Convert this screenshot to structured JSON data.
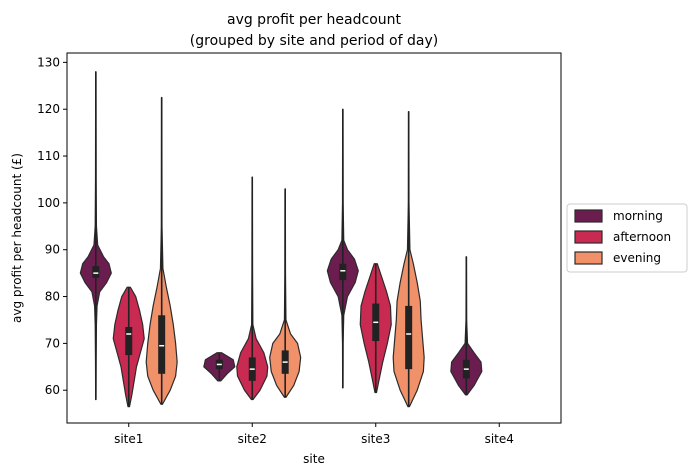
{
  "chart_data": {
    "type": "violin",
    "title_line1": "avg profit per headcount",
    "title_line2": "(grouped by site and period of day)",
    "xlabel": "site",
    "ylabel": "avg profit per headcount (£)",
    "ylim": [
      53,
      132
    ],
    "yticks": [
      60,
      70,
      80,
      90,
      100,
      110,
      120,
      130
    ],
    "categories": [
      "site1",
      "site2",
      "site3",
      "site4"
    ],
    "legend_position": "center-right",
    "series": [
      {
        "name": "morning",
        "color": "#6b1d4f"
      },
      {
        "name": "afternoon",
        "color": "#c92a51"
      },
      {
        "name": "evening",
        "color": "#f0916a"
      }
    ],
    "violins": [
      {
        "category": "site1",
        "series": "morning",
        "min": 58,
        "max": 128,
        "q1": 84,
        "median": 85,
        "q3": 86.5,
        "profile": [
          [
            58,
            0.01
          ],
          [
            66,
            0.02
          ],
          [
            74,
            0.04
          ],
          [
            78,
            0.08
          ],
          [
            81,
            0.25
          ],
          [
            83,
            0.7
          ],
          [
            85,
            1.0
          ],
          [
            87,
            0.85
          ],
          [
            88.5,
            0.5
          ],
          [
            91,
            0.12
          ],
          [
            95,
            0.04
          ],
          [
            105,
            0.02
          ],
          [
            128,
            0.01
          ]
        ]
      },
      {
        "category": "site1",
        "series": "afternoon",
        "min": 56.5,
        "max": 82,
        "q1": 67.5,
        "median": 72,
        "q3": 73.5,
        "profile": [
          [
            56.5,
            0.05
          ],
          [
            59,
            0.2
          ],
          [
            62,
            0.35
          ],
          [
            65,
            0.5
          ],
          [
            68,
            0.75
          ],
          [
            71,
            1.0
          ],
          [
            74,
            0.9
          ],
          [
            77,
            0.7
          ],
          [
            80,
            0.45
          ],
          [
            82,
            0.1
          ]
        ]
      },
      {
        "category": "site1",
        "series": "evening",
        "min": 57,
        "max": 122.5,
        "q1": 63.5,
        "median": 69.5,
        "q3": 76,
        "profile": [
          [
            57,
            0.05
          ],
          [
            60,
            0.55
          ],
          [
            63,
            0.9
          ],
          [
            66,
            1.0
          ],
          [
            70,
            0.9
          ],
          [
            74,
            0.75
          ],
          [
            78,
            0.55
          ],
          [
            82,
            0.3
          ],
          [
            86,
            0.08
          ],
          [
            95,
            0.02
          ],
          [
            122.5,
            0.01
          ]
        ]
      },
      {
        "category": "site2",
        "series": "morning",
        "min": 62,
        "max": 68,
        "q1": 64.5,
        "median": 65.5,
        "q3": 66.5,
        "profile": [
          [
            62,
            0.1
          ],
          [
            63.5,
            0.5
          ],
          [
            65,
            1.0
          ],
          [
            66.5,
            0.9
          ],
          [
            68,
            0.15
          ]
        ]
      },
      {
        "category": "site2",
        "series": "afternoon",
        "min": 58,
        "max": 105.5,
        "q1": 62,
        "median": 64.5,
        "q3": 67,
        "profile": [
          [
            58,
            0.05
          ],
          [
            60,
            0.5
          ],
          [
            63,
            0.95
          ],
          [
            65,
            1.0
          ],
          [
            68,
            0.75
          ],
          [
            71,
            0.25
          ],
          [
            74,
            0.04
          ],
          [
            85,
            0.02
          ],
          [
            105.5,
            0.01
          ]
        ]
      },
      {
        "category": "site2",
        "series": "evening",
        "min": 58.5,
        "max": 103,
        "q1": 63.5,
        "median": 66,
        "q3": 68.5,
        "profile": [
          [
            58.5,
            0.05
          ],
          [
            61,
            0.55
          ],
          [
            64,
            0.9
          ],
          [
            67,
            1.0
          ],
          [
            70,
            0.8
          ],
          [
            72,
            0.35
          ],
          [
            75,
            0.05
          ],
          [
            85,
            0.02
          ],
          [
            103,
            0.01
          ]
        ]
      },
      {
        "category": "site3",
        "series": "morning",
        "min": 60.5,
        "max": 120,
        "q1": 83.5,
        "median": 85.5,
        "q3": 87,
        "profile": [
          [
            60.5,
            0.01
          ],
          [
            70,
            0.02
          ],
          [
            76,
            0.06
          ],
          [
            80,
            0.3
          ],
          [
            83,
            0.8
          ],
          [
            85.5,
            1.0
          ],
          [
            88,
            0.75
          ],
          [
            90,
            0.3
          ],
          [
            92,
            0.06
          ],
          [
            100,
            0.02
          ],
          [
            120,
            0.01
          ]
        ]
      },
      {
        "category": "site3",
        "series": "afternoon",
        "min": 59.5,
        "max": 87,
        "q1": 70.5,
        "median": 74.5,
        "q3": 78.5,
        "profile": [
          [
            59.5,
            0.05
          ],
          [
            62,
            0.2
          ],
          [
            66,
            0.45
          ],
          [
            70,
            0.75
          ],
          [
            74,
            1.0
          ],
          [
            78,
            0.95
          ],
          [
            81,
            0.7
          ],
          [
            84,
            0.4
          ],
          [
            87,
            0.1
          ]
        ]
      },
      {
        "category": "site3",
        "series": "evening",
        "min": 56.5,
        "max": 119.5,
        "q1": 64.5,
        "median": 72,
        "q3": 78,
        "profile": [
          [
            56.5,
            0.05
          ],
          [
            60,
            0.55
          ],
          [
            64,
            0.95
          ],
          [
            67,
            1.0
          ],
          [
            71,
            0.9
          ],
          [
            75,
            0.8
          ],
          [
            79,
            0.75
          ],
          [
            83,
            0.55
          ],
          [
            87,
            0.3
          ],
          [
            90,
            0.08
          ],
          [
            100,
            0.02
          ],
          [
            119.5,
            0.01
          ]
        ]
      },
      {
        "category": "site4",
        "series": "morning",
        "min": 59,
        "max": 88.5,
        "q1": 62.5,
        "median": 64.5,
        "q3": 66.5,
        "profile": [
          [
            59,
            0.05
          ],
          [
            61,
            0.5
          ],
          [
            64,
            1.0
          ],
          [
            66,
            0.95
          ],
          [
            68,
            0.5
          ],
          [
            70,
            0.08
          ],
          [
            75,
            0.02
          ],
          [
            88.5,
            0.01
          ]
        ]
      }
    ]
  }
}
